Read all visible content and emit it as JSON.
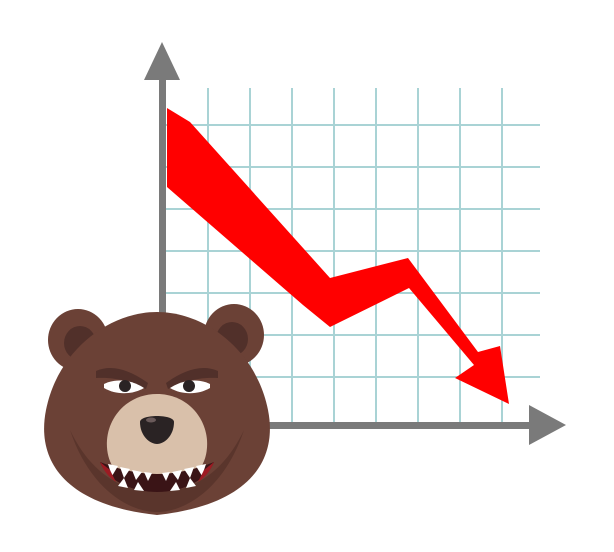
{
  "illustration": {
    "subject": "bear-market",
    "icons": [
      "bear-head-icon",
      "down-trend-arrow-icon",
      "chart-axes-icon",
      "grid-icon"
    ]
  },
  "colors": {
    "background": "#ffffff",
    "grid": "#a9d3d5",
    "axis": "#7a7a7a",
    "trend_arrow": "#ff0000",
    "bear_fur": "#6b4136",
    "bear_fur_dark": "#51302a",
    "bear_muzzle": "#d9c0aa",
    "bear_nose": "#2a2324",
    "bear_mouth": "#3a1416",
    "bear_teeth": "#ffffff"
  }
}
